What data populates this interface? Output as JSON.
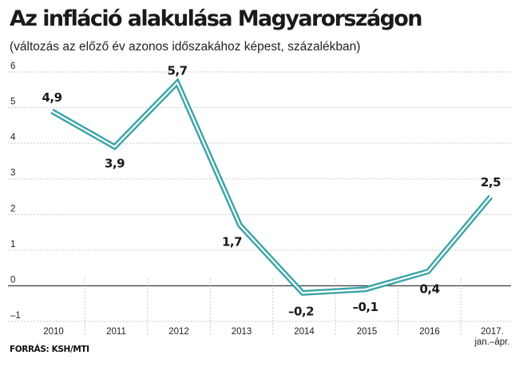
{
  "title": "Az infláció alakulása Magyarországon",
  "subtitle": "(változás az előző év azonos időszakához képest, százalékban)",
  "source": "FORRÁS: KSH/MTI",
  "colors": {
    "line": "#3aa4a8",
    "grid": "#b8b8b8",
    "zero": "#444444"
  },
  "chart_data": {
    "type": "line",
    "categories": [
      "2010",
      "2011",
      "2012",
      "2013",
      "2014",
      "2015",
      "2016",
      "2017. jan.–ápr."
    ],
    "x_tick_labels": [
      [
        "2010"
      ],
      [
        "2011"
      ],
      [
        "2012"
      ],
      [
        "2013"
      ],
      [
        "2014"
      ],
      [
        "2015"
      ],
      [
        "2016"
      ],
      [
        "2017.",
        "jan.–ápr."
      ]
    ],
    "values": [
      4.9,
      3.9,
      5.7,
      1.7,
      -0.2,
      -0.1,
      0.4,
      2.5
    ],
    "data_labels": [
      "4,9",
      "3,9",
      "5,7",
      "1,7",
      "–0,2",
      "–0,1",
      "0,4",
      "2,5"
    ],
    "y_ticks": [
      6,
      5,
      4,
      3,
      2,
      1,
      0,
      -1
    ],
    "y_tick_labels": [
      "6",
      "5",
      "4",
      "3",
      "2",
      "1",
      "0",
      "–1"
    ],
    "ylim": [
      -1,
      6
    ],
    "grid": true,
    "xlabel": "",
    "ylabel": ""
  }
}
